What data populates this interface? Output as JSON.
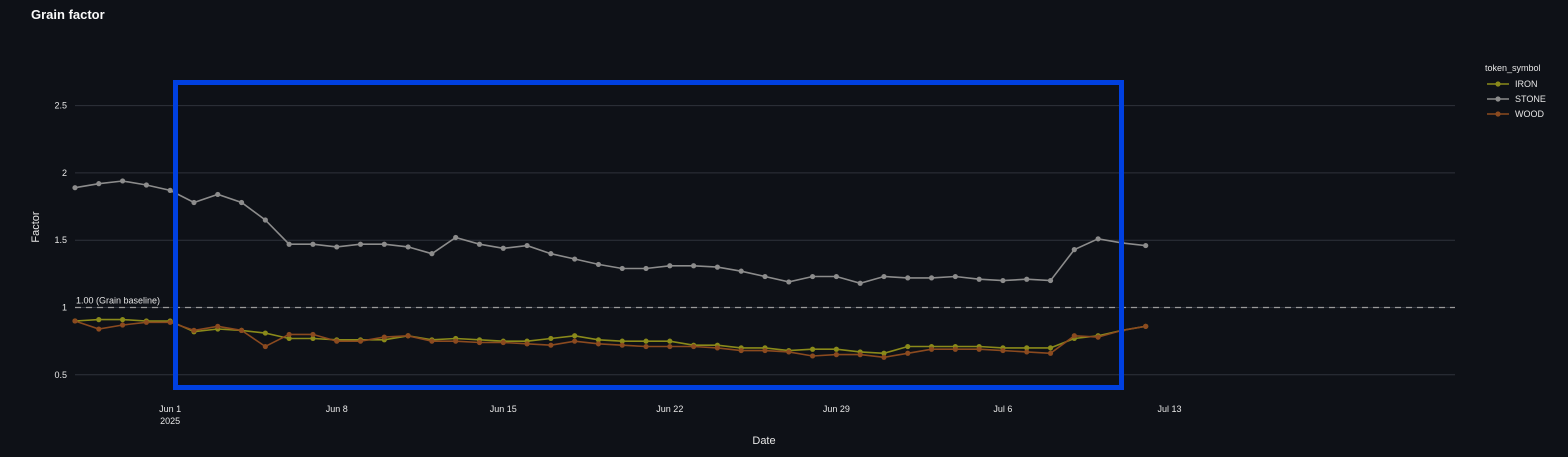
{
  "chart_data": {
    "type": "line",
    "title": "Grain factor",
    "xlabel": "Date",
    "ylabel": "Factor",
    "xlim": [
      "2025-05-28",
      "2025-07-25"
    ],
    "ylim": [
      0.35,
      2.95
    ],
    "x_ticks": [
      {
        "date": "2025-06-01",
        "label": "Jun 1",
        "sub": "2025"
      },
      {
        "date": "2025-06-08",
        "label": "Jun 8",
        "sub": ""
      },
      {
        "date": "2025-06-15",
        "label": "Jun 15",
        "sub": ""
      },
      {
        "date": "2025-06-22",
        "label": "Jun 22",
        "sub": ""
      },
      {
        "date": "2025-06-29",
        "label": "Jun 29",
        "sub": ""
      },
      {
        "date": "2025-07-06",
        "label": "Jul 6",
        "sub": ""
      },
      {
        "date": "2025-07-13",
        "label": "Jul 13",
        "sub": ""
      }
    ],
    "y_ticks": [
      0.5,
      1,
      1.5,
      2,
      2.5
    ],
    "y_tick_labels": [
      "0.5",
      "1",
      "1.5",
      "2",
      "2.5"
    ],
    "grid": true,
    "legend_title": "token_symbol",
    "legend_position": "top-right",
    "baseline": {
      "value": 1.0,
      "label": "1.00 (Grain baseline)",
      "style": "dashed"
    },
    "x": [
      "2025-05-28",
      "2025-05-29",
      "2025-05-30",
      "2025-05-31",
      "2025-06-01",
      "2025-06-02",
      "2025-06-03",
      "2025-06-04",
      "2025-06-05",
      "2025-06-06",
      "2025-06-07",
      "2025-06-08",
      "2025-06-09",
      "2025-06-10",
      "2025-06-11",
      "2025-06-12",
      "2025-06-13",
      "2025-06-14",
      "2025-06-15",
      "2025-06-16",
      "2025-06-17",
      "2025-06-18",
      "2025-06-19",
      "2025-06-20",
      "2025-06-21",
      "2025-06-22",
      "2025-06-23",
      "2025-06-24",
      "2025-06-25",
      "2025-06-26",
      "2025-06-27",
      "2025-06-28",
      "2025-06-29",
      "2025-06-30",
      "2025-07-01",
      "2025-07-02",
      "2025-07-03",
      "2025-07-04",
      "2025-07-05",
      "2025-07-06",
      "2025-07-07",
      "2025-07-08",
      "2025-07-09",
      "2025-07-10",
      "2025-07-11",
      "2025-07-12"
    ],
    "series": [
      {
        "name": "IRON",
        "color": "#8a8a1a",
        "values": [
          0.9,
          0.91,
          0.91,
          0.9,
          0.9,
          0.82,
          0.84,
          0.83,
          0.81,
          0.77,
          0.77,
          0.76,
          0.76,
          0.76,
          0.79,
          0.76,
          0.77,
          0.76,
          0.75,
          0.75,
          0.77,
          0.79,
          0.76,
          0.75,
          0.75,
          0.75,
          0.72,
          0.72,
          0.7,
          0.7,
          0.68,
          0.69,
          0.69,
          0.67,
          0.66,
          0.71,
          0.71,
          0.71,
          0.71,
          0.7,
          0.7,
          0.7,
          0.77,
          0.79,
          0.83,
          0.86
        ]
      },
      {
        "name": "STONE",
        "color": "#8c8c8c",
        "values": [
          1.89,
          1.92,
          1.94,
          1.91,
          1.87,
          1.78,
          1.84,
          1.78,
          1.65,
          1.47,
          1.47,
          1.45,
          1.47,
          1.47,
          1.45,
          1.4,
          1.52,
          1.47,
          1.44,
          1.46,
          1.4,
          1.36,
          1.32,
          1.29,
          1.29,
          1.31,
          1.31,
          1.3,
          1.27,
          1.23,
          1.19,
          1.23,
          1.23,
          1.18,
          1.23,
          1.22,
          1.22,
          1.23,
          1.21,
          1.2,
          1.21,
          1.2,
          1.43,
          1.51,
          1.48,
          1.46
        ]
      },
      {
        "name": "WOOD",
        "color": "#8b4a1f",
        "values": [
          0.9,
          0.84,
          0.87,
          0.89,
          0.89,
          0.83,
          0.86,
          0.83,
          0.71,
          0.8,
          0.8,
          0.75,
          0.75,
          0.78,
          0.79,
          0.75,
          0.75,
          0.74,
          0.74,
          0.73,
          0.72,
          0.75,
          0.73,
          0.72,
          0.71,
          0.71,
          0.71,
          0.7,
          0.68,
          0.68,
          0.67,
          0.64,
          0.65,
          0.65,
          0.63,
          0.66,
          0.69,
          0.69,
          0.69,
          0.68,
          0.67,
          0.66,
          0.79,
          0.78,
          0.83,
          0.86
        ]
      }
    ]
  },
  "overlay": {
    "color": "#0040e0"
  }
}
